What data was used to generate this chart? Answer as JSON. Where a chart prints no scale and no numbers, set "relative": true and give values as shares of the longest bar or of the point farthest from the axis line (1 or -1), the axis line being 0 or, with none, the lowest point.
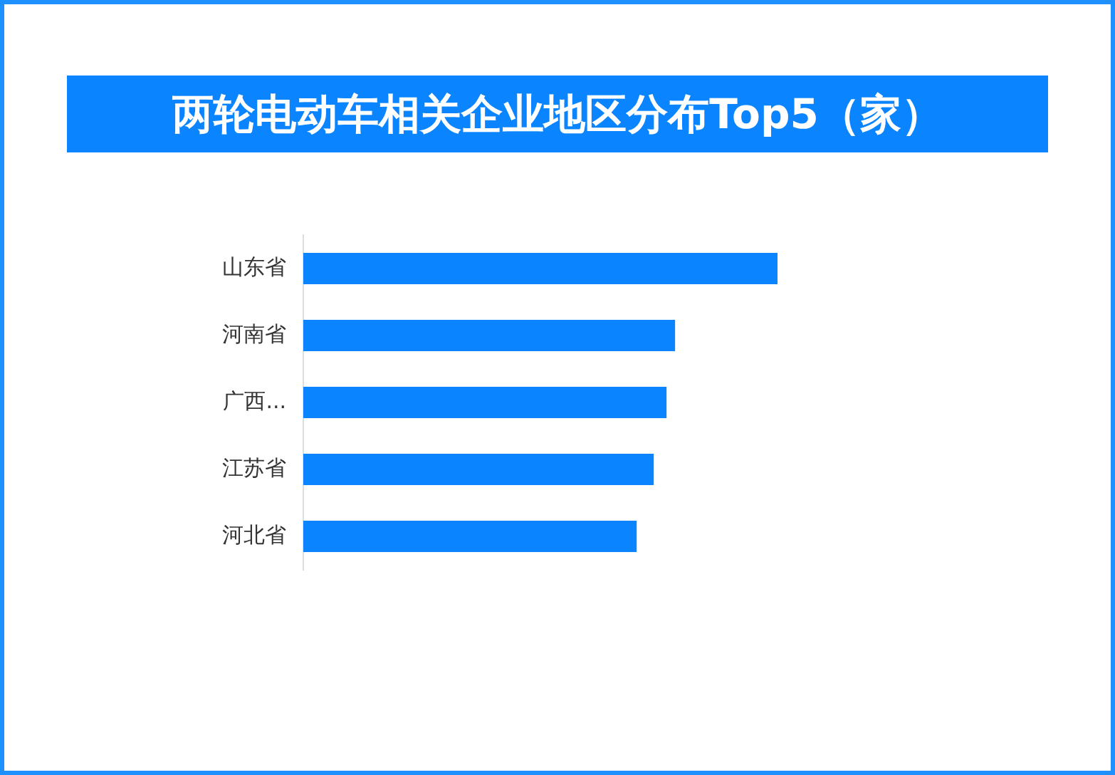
{
  "chart_data": {
    "type": "bar",
    "orientation": "horizontal",
    "relative": true,
    "title": "两轮电动车相关企业地区分布Top5（家）",
    "categories": [
      "山东省",
      "河南省",
      "广西...",
      "江苏省",
      "河北省"
    ],
    "values": [
      1,
      0.784,
      0.766,
      0.739,
      0.703
    ],
    "color": "#0a84ff",
    "legend": false
  }
}
